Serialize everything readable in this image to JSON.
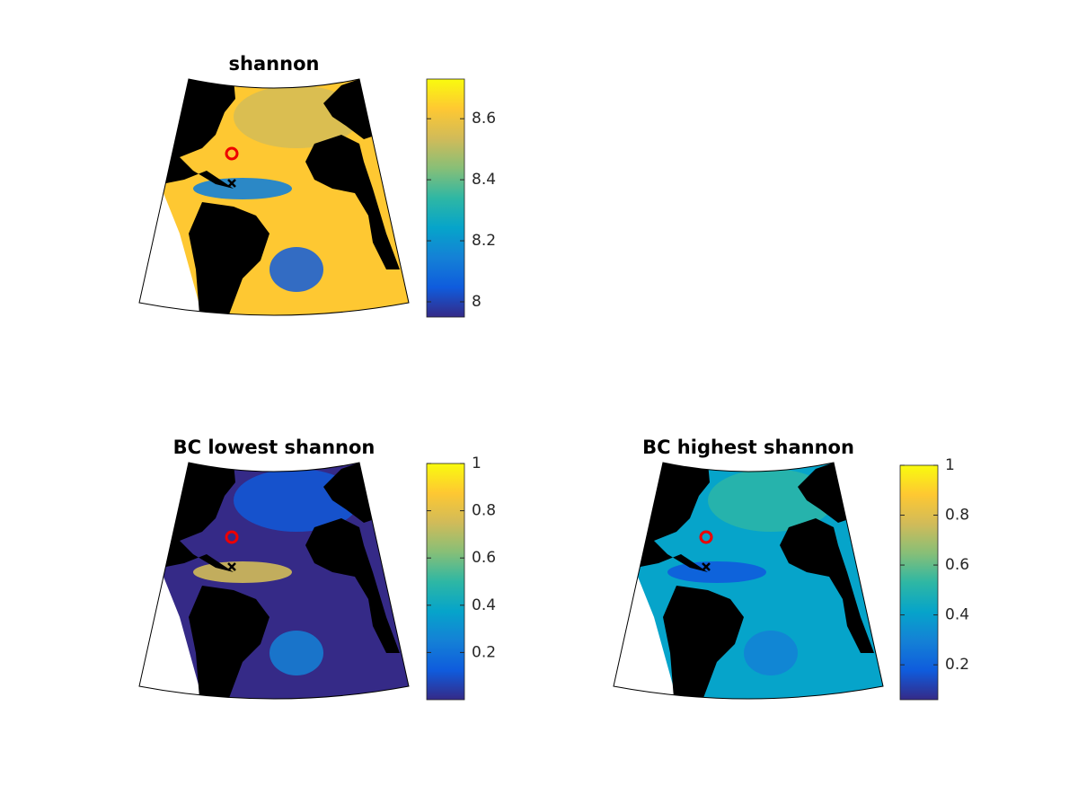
{
  "colormap": [
    "#352a87",
    "#0f5cdd",
    "#1481d6",
    "#06a4ca",
    "#2eb7a4",
    "#87bf77",
    "#d1bb59",
    "#fec832",
    "#f9fb0e"
  ],
  "chart_data": [
    {
      "type": "map",
      "title": "shannon",
      "clim": [
        7.95,
        8.73
      ],
      "cticks": [
        8,
        8.2,
        8.4,
        8.6
      ]
    },
    {
      "type": "map",
      "title": "BC lowest shannon",
      "clim": [
        0,
        1
      ],
      "cticks": [
        0.2,
        0.4,
        0.6,
        0.8,
        1
      ]
    },
    {
      "type": "map",
      "title": "BC highest shannon",
      "clim": [
        0.06,
        1
      ],
      "cticks": [
        0.2,
        0.4,
        0.6,
        0.8,
        1
      ]
    }
  ]
}
